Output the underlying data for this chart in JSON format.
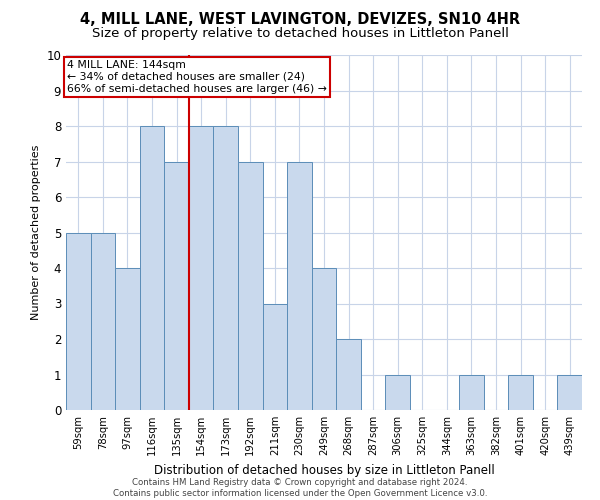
{
  "title": "4, MILL LANE, WEST LAVINGTON, DEVIZES, SN10 4HR",
  "subtitle": "Size of property relative to detached houses in Littleton Panell",
  "xlabel": "Distribution of detached houses by size in Littleton Panell",
  "ylabel": "Number of detached properties",
  "categories": [
    "59sqm",
    "78sqm",
    "97sqm",
    "116sqm",
    "135sqm",
    "154sqm",
    "173sqm",
    "192sqm",
    "211sqm",
    "230sqm",
    "249sqm",
    "268sqm",
    "287sqm",
    "306sqm",
    "325sqm",
    "344sqm",
    "363sqm",
    "382sqm",
    "401sqm",
    "420sqm",
    "439sqm"
  ],
  "values": [
    5,
    5,
    4,
    8,
    7,
    8,
    8,
    7,
    3,
    7,
    4,
    2,
    0,
    1,
    0,
    0,
    1,
    0,
    1,
    0,
    1
  ],
  "bar_color": "#c9d9ed",
  "bar_edge_color": "#5b8db8",
  "reference_line_x": 4.5,
  "reference_line_label": "4 MILL LANE: 144sqm",
  "annotation_line1": "← 34% of detached houses are smaller (24)",
  "annotation_line2": "66% of semi-detached houses are larger (46) →",
  "ylim": [
    0,
    10
  ],
  "yticks": [
    0,
    1,
    2,
    3,
    4,
    5,
    6,
    7,
    8,
    9,
    10
  ],
  "footer_line1": "Contains HM Land Registry data © Crown copyright and database right 2024.",
  "footer_line2": "Contains public sector information licensed under the Open Government Licence v3.0.",
  "title_fontsize": 10.5,
  "subtitle_fontsize": 9.5,
  "annotation_box_color": "#ffffff",
  "annotation_box_edge": "#cc0000",
  "ref_line_color": "#cc0000",
  "background_color": "#ffffff",
  "grid_color": "#c8d4e8"
}
